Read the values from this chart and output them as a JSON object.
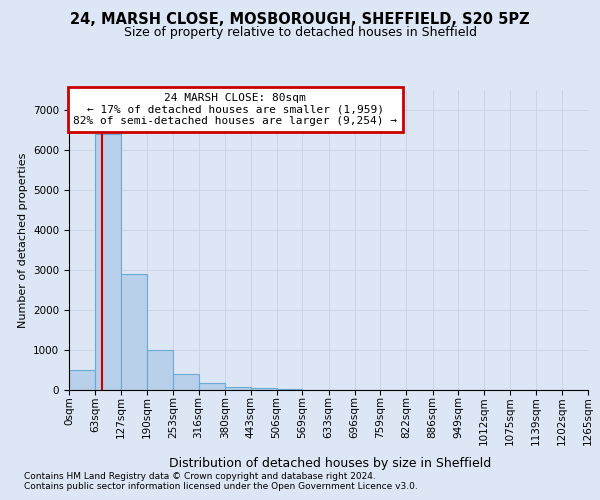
{
  "title": "24, MARSH CLOSE, MOSBOROUGH, SHEFFIELD, S20 5PZ",
  "subtitle": "Size of property relative to detached houses in Sheffield",
  "xlabel": "Distribution of detached houses by size in Sheffield",
  "ylabel": "Number of detached properties",
  "footer_line1": "Contains HM Land Registry data © Crown copyright and database right 2024.",
  "footer_line2": "Contains public sector information licensed under the Open Government Licence v3.0.",
  "bin_edges": [
    0,
    63,
    127,
    190,
    253,
    316,
    380,
    443,
    506,
    569,
    633,
    696,
    759,
    822,
    886,
    949,
    1012,
    1075,
    1139,
    1202,
    1265
  ],
  "bar_heights": [
    500,
    6400,
    2900,
    1000,
    400,
    170,
    70,
    50,
    30,
    10,
    5,
    2,
    1,
    0,
    0,
    0,
    0,
    0,
    0,
    0
  ],
  "bar_color": "#b8d0ea",
  "bar_edgecolor": "#6aaad4",
  "property_size": 80,
  "vline_color": "#cc0000",
  "annotation_line1": "24 MARSH CLOSE: 80sqm",
  "annotation_line2": "← 17% of detached houses are smaller (1,959)",
  "annotation_line3": "82% of semi-detached houses are larger (9,254) →",
  "annotation_box_edgecolor": "#cc0000",
  "annotation_fill": "#ffffff",
  "ylim_max": 7500,
  "yticks": [
    0,
    1000,
    2000,
    3000,
    4000,
    5000,
    6000,
    7000
  ],
  "grid_color": "#c8d4e8",
  "background_color": "#dde6f4",
  "title_fontsize": 10.5,
  "subtitle_fontsize": 9,
  "ylabel_fontsize": 8,
  "xlabel_fontsize": 9,
  "tick_fontsize": 7.5,
  "footer_fontsize": 6.5
}
